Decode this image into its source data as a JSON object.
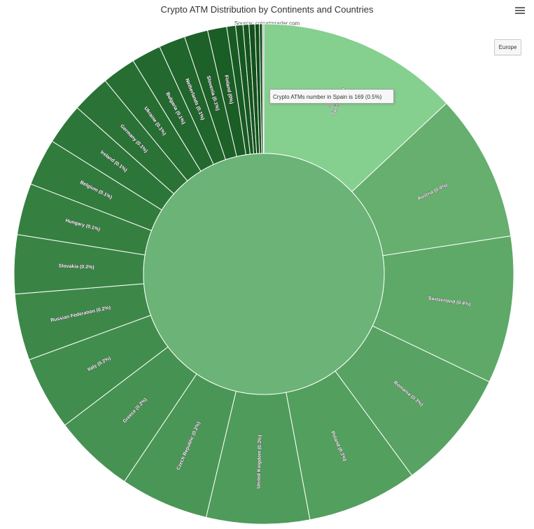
{
  "header": {
    "title": "Crypto ATM Distribution by Continents and Countries",
    "subtitle": "Source: coinatmradar.com"
  },
  "breadcrumb": {
    "label": "Europe"
  },
  "tooltip": {
    "text": "Crypto ATMs number in Spain is 169 (0.5%)"
  },
  "chart_data": {
    "type": "sunburst",
    "title": "Crypto ATM Distribution by Continents and Countries",
    "subtitle": "Source: coinatmradar.com",
    "root": {
      "name": "Europe"
    },
    "slices": [
      {
        "name": "Spain",
        "label": "Spain (0.5%)",
        "share": 0.137,
        "color": "#85cf8f",
        "highlighted": true
      },
      {
        "name": "Austria",
        "label": "Austria (0.4%)",
        "share": 0.1,
        "color": "#66af6e"
      },
      {
        "name": "Switzerland",
        "label": "Switzerland (0.4%)",
        "share": 0.1,
        "color": "#5ea968"
      },
      {
        "name": "Romania",
        "label": "Romania (0.3%)",
        "share": 0.082,
        "color": "#58a363"
      },
      {
        "name": "Poland",
        "label": "Poland (0.3%)",
        "share": 0.075,
        "color": "#539f5e"
      },
      {
        "name": "United Kingdom",
        "label": "United Kingdom (0.3%)",
        "share": 0.07,
        "color": "#4f9b5b"
      },
      {
        "name": "Czech Republic",
        "label": "Czech Republic (0.2%)",
        "share": 0.06,
        "color": "#4a9656"
      },
      {
        "name": "Greece",
        "label": "Greece (0.2%)",
        "share": 0.055,
        "color": "#469252"
      },
      {
        "name": "Italy",
        "label": "Italy (0.2%)",
        "share": 0.05,
        "color": "#418d4d"
      },
      {
        "name": "Russian Federation",
        "label": "Russian Federation (0.2%)",
        "share": 0.045,
        "color": "#3d8849"
      },
      {
        "name": "Slovakia",
        "label": "Slovakia (0.2%)",
        "share": 0.04,
        "color": "#398445"
      },
      {
        "name": "Hungary",
        "label": "Hungary (0.1%)",
        "share": 0.035,
        "color": "#357f41"
      },
      {
        "name": "Belgium",
        "label": "Belgium (0.1%)",
        "share": 0.032,
        "color": "#317b3d"
      },
      {
        "name": "Ireland",
        "label": "Ireland (0.1%)",
        "share": 0.028,
        "color": "#2d7639"
      },
      {
        "name": "Germany",
        "label": "Germany (0.1%)",
        "share": 0.026,
        "color": "#2a7236"
      },
      {
        "name": "Ukraine",
        "label": "Ukraine (0.1%)",
        "share": 0.023,
        "color": "#276e32"
      },
      {
        "name": "Bulgaria",
        "label": "Bulgaria (0.1%)",
        "share": 0.02,
        "color": "#23692f"
      },
      {
        "name": "Netherlands",
        "label": "Netherlands (0.1%)",
        "share": 0.018,
        "color": "#20652b"
      },
      {
        "name": "Slovenia",
        "label": "Slovenia (0.1%)",
        "share": 0.016,
        "color": "#1d6128"
      },
      {
        "name": "Finland",
        "label": "Finland (0%)",
        "share": 0.013,
        "color": "#1a5d25"
      },
      {
        "name": "",
        "label": "",
        "share": 0.006,
        "color": "#185a23"
      },
      {
        "name": "",
        "label": "",
        "share": 0.005,
        "color": "#165720"
      },
      {
        "name": "",
        "label": "",
        "share": 0.004,
        "color": "#14541e"
      },
      {
        "name": "",
        "label": "",
        "share": 0.004,
        "color": "#13511c"
      },
      {
        "name": "",
        "label": "",
        "share": 0.003,
        "color": "#114e1a"
      },
      {
        "name": "",
        "label": "",
        "share": 0.002,
        "color": "#104b18"
      },
      {
        "name": "",
        "label": "",
        "share": 0.001,
        "color": "#a0a0a0"
      }
    ],
    "center_color": "#6bb376"
  }
}
